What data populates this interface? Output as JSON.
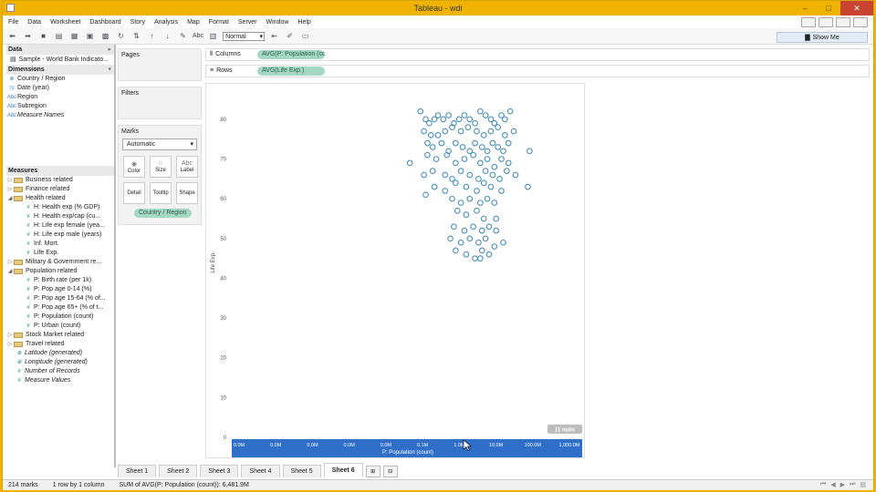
{
  "window": {
    "title": "Tableau - wdi"
  },
  "menu": [
    "File",
    "Data",
    "Worksheet",
    "Dashboard",
    "Story",
    "Analysis",
    "Map",
    "Format",
    "Server",
    "Window",
    "Help"
  ],
  "toolbar": {
    "text_btn": "Abc",
    "fit": "Normal",
    "show_me": "Show Me"
  },
  "data_pane": {
    "header": "Data",
    "source": "Sample - World Bank Indicato...",
    "dimensions_header": "Dimensions",
    "dimensions": [
      {
        "icon": "⊕",
        "label": "Country / Region",
        "italic": false
      },
      {
        "icon": "◷",
        "label": "Date (year)",
        "italic": false
      },
      {
        "icon": "Abc",
        "label": "Region",
        "italic": false
      },
      {
        "icon": "Abc",
        "label": "Subregion",
        "italic": false
      },
      {
        "icon": "Abc",
        "label": "Measure Names",
        "italic": true
      }
    ],
    "measures_header": "Measures",
    "measures": [
      {
        "type": "folder",
        "open": false,
        "label": "Business related"
      },
      {
        "type": "folder",
        "open": false,
        "label": "Finance related"
      },
      {
        "type": "folder",
        "open": true,
        "label": "Health related"
      },
      {
        "type": "field",
        "label": "H: Health exp (% GDP)"
      },
      {
        "type": "field",
        "label": "H: Health exp/cap (cu..."
      },
      {
        "type": "field",
        "label": "H: Life exp female (yea..."
      },
      {
        "type": "field",
        "label": "H: Life exp male (years)"
      },
      {
        "type": "field",
        "label": "Inf. Mort."
      },
      {
        "type": "field",
        "label": "Life Exp."
      },
      {
        "type": "folder",
        "open": false,
        "label": "Military & Government re..."
      },
      {
        "type": "folder",
        "open": true,
        "label": "Population related"
      },
      {
        "type": "field",
        "label": "P: Birth rate (per 1k)"
      },
      {
        "type": "field",
        "label": "P: Pop age 0-14 (%)"
      },
      {
        "type": "field",
        "label": "P: Pop age 15-64 (% of..."
      },
      {
        "type": "field",
        "label": "P: Pop age 65+ (% of t..."
      },
      {
        "type": "field",
        "label": "P: Population (count)"
      },
      {
        "type": "field",
        "label": "P: Urban (count)"
      },
      {
        "type": "folder",
        "open": false,
        "label": "Stock Market related"
      },
      {
        "type": "folder",
        "open": false,
        "label": "Travel related"
      },
      {
        "type": "gen",
        "label": "Latitude (generated)"
      },
      {
        "type": "gen",
        "label": "Longitude (generated)"
      },
      {
        "type": "gen",
        "label": "Number of Records"
      },
      {
        "type": "gen",
        "label": "Measure Values"
      }
    ]
  },
  "cards": {
    "pages": "Pages",
    "filters": "Filters",
    "marks": "Marks",
    "mark_type": "Automatic",
    "mark_buttons": [
      {
        "label": "Color",
        "icon": "◉"
      },
      {
        "label": "Size",
        "icon": "○"
      },
      {
        "label": "Label",
        "icon": "Abc"
      },
      {
        "label": "Detail",
        "icon": ""
      },
      {
        "label": "Tooltip",
        "icon": ""
      },
      {
        "label": "Shape",
        "icon": ""
      }
    ],
    "marks_pill": "Country / Region"
  },
  "shelves": {
    "columns_label": "Columns",
    "columns_pill": "AVG(P: Population (coun...",
    "rows_label": "Rows",
    "rows_pill": "AVG(Life Exp.)"
  },
  "chart_data": {
    "type": "scatter",
    "xlabel": "P: Population (count)",
    "ylabel": "Life Exp.",
    "x_scale": "log",
    "x_ticks": [
      "0.0M",
      "0.0M",
      "0.0M",
      "0.0M",
      "0.0M",
      "0.1M",
      "1.0M",
      "10.0M",
      "100.0M",
      "1,000.0M"
    ],
    "y_ticks": [
      0,
      10,
      20,
      30,
      40,
      50,
      60,
      70,
      80
    ],
    "ylim": [
      0,
      88
    ],
    "nulls_badge": "11 nulls",
    "mark_color": "#4a90b8",
    "points": [
      [
        5.2,
        82
      ],
      [
        5.35,
        80
      ],
      [
        5.45,
        79
      ],
      [
        5.6,
        80
      ],
      [
        5.7,
        81
      ],
      [
        5.85,
        80
      ],
      [
        6.0,
        81
      ],
      [
        6.15,
        79
      ],
      [
        6.3,
        80
      ],
      [
        6.45,
        81
      ],
      [
        6.6,
        80
      ],
      [
        6.75,
        79
      ],
      [
        6.9,
        82
      ],
      [
        7.05,
        81
      ],
      [
        7.2,
        80
      ],
      [
        7.3,
        79
      ],
      [
        7.5,
        81
      ],
      [
        7.6,
        80
      ],
      [
        7.75,
        82
      ],
      [
        5.3,
        77
      ],
      [
        5.5,
        76
      ],
      [
        5.7,
        76
      ],
      [
        5.9,
        77
      ],
      [
        6.1,
        78
      ],
      [
        6.35,
        77
      ],
      [
        6.55,
        78
      ],
      [
        6.8,
        77
      ],
      [
        7.0,
        76
      ],
      [
        7.2,
        77
      ],
      [
        7.4,
        78
      ],
      [
        7.6,
        76
      ],
      [
        7.85,
        77
      ],
      [
        5.4,
        74
      ],
      [
        5.55,
        73
      ],
      [
        5.8,
        74
      ],
      [
        6.0,
        72
      ],
      [
        6.2,
        74
      ],
      [
        6.4,
        73
      ],
      [
        6.6,
        72
      ],
      [
        6.75,
        74
      ],
      [
        6.95,
        73
      ],
      [
        7.1,
        72
      ],
      [
        7.25,
        74
      ],
      [
        7.4,
        73
      ],
      [
        7.55,
        72
      ],
      [
        7.7,
        74
      ],
      [
        8.3,
        72
      ],
      [
        4.9,
        69
      ],
      [
        5.4,
        71
      ],
      [
        5.65,
        70
      ],
      [
        5.95,
        71
      ],
      [
        6.2,
        69
      ],
      [
        6.45,
        70
      ],
      [
        6.7,
        71
      ],
      [
        6.9,
        69
      ],
      [
        7.1,
        70
      ],
      [
        7.3,
        68
      ],
      [
        7.5,
        70
      ],
      [
        7.7,
        69
      ],
      [
        5.3,
        66
      ],
      [
        5.55,
        67
      ],
      [
        5.9,
        66
      ],
      [
        6.1,
        65
      ],
      [
        6.35,
        67
      ],
      [
        6.6,
        66
      ],
      [
        6.85,
        65
      ],
      [
        7.05,
        67
      ],
      [
        7.25,
        66
      ],
      [
        7.45,
        65
      ],
      [
        7.65,
        67
      ],
      [
        7.9,
        66
      ],
      [
        8.25,
        63
      ],
      [
        5.6,
        63
      ],
      [
        5.9,
        62
      ],
      [
        6.2,
        64
      ],
      [
        6.5,
        63
      ],
      [
        6.8,
        62
      ],
      [
        7.0,
        64
      ],
      [
        7.2,
        63
      ],
      [
        7.5,
        62
      ],
      [
        5.35,
        61
      ],
      [
        6.1,
        60
      ],
      [
        6.35,
        59
      ],
      [
        6.6,
        60
      ],
      [
        6.9,
        59
      ],
      [
        7.1,
        60
      ],
      [
        7.3,
        59
      ],
      [
        6.25,
        57
      ],
      [
        6.5,
        56
      ],
      [
        6.8,
        57
      ],
      [
        7.0,
        55
      ],
      [
        7.35,
        55
      ],
      [
        6.15,
        53
      ],
      [
        6.45,
        52
      ],
      [
        6.7,
        53
      ],
      [
        6.95,
        52
      ],
      [
        7.15,
        53
      ],
      [
        7.35,
        52
      ],
      [
        6.05,
        50
      ],
      [
        6.35,
        49
      ],
      [
        6.6,
        50
      ],
      [
        6.85,
        49
      ],
      [
        7.05,
        50
      ],
      [
        7.3,
        48
      ],
      [
        7.55,
        49
      ],
      [
        6.2,
        47
      ],
      [
        6.5,
        46
      ],
      [
        6.75,
        45
      ],
      [
        6.95,
        47
      ],
      [
        7.15,
        46
      ],
      [
        6.9,
        45
      ]
    ]
  },
  "sheets": [
    "Sheet 1",
    "Sheet 2",
    "Sheet 3",
    "Sheet 4",
    "Sheet 5",
    "Sheet 6"
  ],
  "active_sheet": 5,
  "status": {
    "marks": "214 marks",
    "layout": "1 row by 1 column",
    "sum": "SUM of AVG(P: Population (count)): 6,481.9M"
  }
}
